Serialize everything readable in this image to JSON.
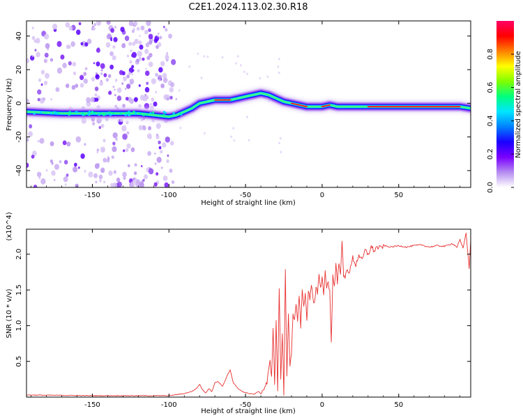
{
  "figure": {
    "title": "C2E1.2024.113.02.30.R18"
  },
  "chart_data": [
    {
      "type": "heatmap",
      "xlabel": "Height of straight line (km)",
      "ylabel": "Frequency (Hz)",
      "xlim": [
        -193,
        97
      ],
      "ylim": [
        -50,
        49
      ],
      "x_ticks": [
        -150,
        -100,
        -50,
        0,
        50
      ],
      "y_ticks": [
        -40,
        -20,
        0,
        20,
        40
      ],
      "colorbar": {
        "label": "Normalized spectral amplitude",
        "range": [
          0.0,
          1.0
        ],
        "ticks": [
          "0.0",
          "0.2",
          "0.4",
          "0.6",
          "0.8"
        ],
        "colors": [
          "#ffffff",
          "#b58cf0",
          "#7a00ff",
          "#1a00ff",
          "#0080ff",
          "#00e5ff",
          "#00ff7f",
          "#7fff00",
          "#ffff00",
          "#ff8000",
          "#ff0000",
          "#ff0066"
        ]
      },
      "ridge": {
        "x": [
          -193,
          -170,
          -150,
          -140,
          -130,
          -120,
          -110,
          -100,
          -95,
          -90,
          -85,
          -80,
          -75,
          -70,
          -65,
          -60,
          -55,
          -50,
          -45,
          -40,
          -35,
          -30,
          -25,
          -20,
          -15,
          -10,
          -5,
          0,
          5,
          10,
          20,
          30,
          40,
          50,
          60,
          70,
          80,
          90,
          97
        ],
        "y": [
          -5,
          -6,
          -6,
          -6,
          -6,
          -6,
          -7,
          -8,
          -7,
          -5,
          -3,
          0,
          1,
          2,
          2,
          2,
          3,
          4,
          5,
          6,
          5,
          3,
          1,
          0,
          -1,
          -2,
          -2,
          -2,
          -1,
          -2,
          -2,
          -2,
          -2,
          -2,
          -2,
          -2,
          -2,
          -2,
          -3
        ]
      },
      "scatter_region": {
        "x_range": [
          -193,
          -95
        ],
        "y_range": [
          -50,
          49
        ]
      }
    },
    {
      "type": "line",
      "xlabel": "Height of straight line (km)",
      "ylabel": "SNR (10 * v/v)",
      "y_multiplier": "(x10^4)",
      "xlim": [
        -193,
        97
      ],
      "ylim": [
        0,
        2.35
      ],
      "x_ticks": [
        -150,
        -100,
        -50,
        0,
        50
      ],
      "y_ticks": [
        0.5,
        1.0,
        1.5,
        2.0
      ],
      "y_tick_labels": [
        "0.5",
        "1.0",
        "1.5",
        "2.0"
      ],
      "color": "#e83030",
      "series": [
        {
          "name": "",
          "x": [
            -193,
            -150,
            -100,
            -90,
            -85,
            -82,
            -80,
            -78,
            -76,
            -74,
            -72,
            -70,
            -68,
            -65,
            -62,
            -60,
            -58,
            -55,
            -52,
            -50,
            -47,
            -44,
            -42,
            -40,
            -38,
            -36,
            -34,
            -33,
            -32,
            -31,
            -30,
            -29,
            -28,
            -27,
            -26,
            -25,
            -24,
            -23,
            -22,
            -21,
            -20,
            -19,
            -18,
            -17,
            -16,
            -15,
            -14,
            -13,
            -12,
            -11,
            -10,
            -9,
            -8,
            -7,
            -6,
            -5,
            -4,
            -3,
            -2,
            -1,
            0,
            1,
            2,
            3,
            4,
            5,
            6,
            7,
            8,
            9,
            10,
            11,
            12,
            13,
            14,
            15,
            16,
            18,
            20,
            22,
            24,
            26,
            28,
            30,
            32,
            34,
            36,
            38,
            40,
            45,
            50,
            55,
            60,
            65,
            70,
            75,
            80,
            85,
            88,
            90,
            92,
            94,
            95,
            96,
            97
          ],
          "y": [
            0.03,
            0.02,
            0.02,
            0.05,
            0.08,
            0.12,
            0.18,
            0.1,
            0.06,
            0.12,
            0.08,
            0.2,
            0.22,
            0.15,
            0.3,
            0.38,
            0.2,
            0.12,
            0.08,
            0.06,
            0.05,
            0.04,
            0.08,
            0.05,
            0.12,
            0.2,
            0.5,
            0.3,
            0.95,
            0.2,
            1.05,
            0.1,
            1.55,
            0.25,
            0.9,
            0.05,
            1.8,
            0.3,
            1.2,
            0.4,
            0.6,
            1.15,
            1.05,
            1.3,
            1.1,
            1.4,
            1.0,
            1.5,
            1.25,
            1.45,
            1.1,
            1.5,
            1.35,
            1.6,
            1.4,
            1.3,
            1.55,
            1.45,
            1.7,
            1.5,
            1.65,
            1.45,
            1.75,
            1.55,
            1.6,
            1.5,
            0.75,
            1.7,
            1.55,
            1.85,
            1.6,
            1.9,
            1.75,
            2.15,
            1.7,
            1.65,
            1.8,
            1.75,
            1.95,
            1.85,
            2.0,
            1.9,
            2.05,
            2.0,
            2.1,
            2.05,
            2.1,
            2.08,
            2.12,
            2.1,
            2.12,
            2.1,
            2.12,
            2.13,
            2.1,
            2.12,
            2.11,
            2.15,
            2.1,
            2.2,
            2.08,
            2.3,
            2.05,
            1.8,
            2.2
          ]
        }
      ]
    }
  ]
}
